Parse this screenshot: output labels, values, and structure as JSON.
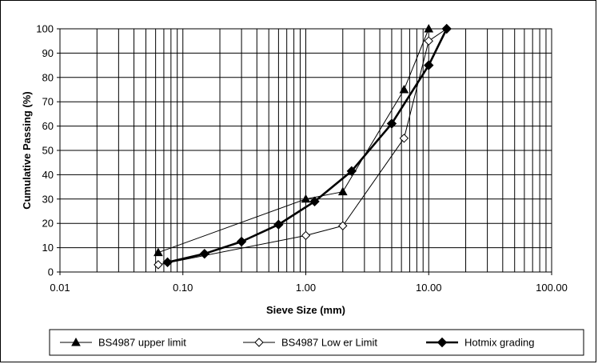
{
  "chart_data": {
    "type": "line",
    "title": "",
    "xlabel": "Sieve Size (mm)",
    "ylabel": "Cumulative Passing (%)",
    "x_scale": "log",
    "xlim": [
      0.01,
      100
    ],
    "ylim": [
      0,
      100
    ],
    "x_tick_labels": [
      "0.01",
      "0.10",
      "1.00",
      "10.00",
      "100.00"
    ],
    "y_tick_labels": [
      "0",
      "10",
      "20",
      "30",
      "40",
      "50",
      "60",
      "70",
      "80",
      "90",
      "100"
    ],
    "grid": true,
    "legend_position": "bottom",
    "series": [
      {
        "name": "BS4987 upper limit",
        "marker": "filled-triangle",
        "color": "#000000",
        "x": [
          0.063,
          1.0,
          2.0,
          6.3,
          10.0
        ],
        "y": [
          8,
          30,
          33,
          75,
          100
        ]
      },
      {
        "name": "BS4987 Low er Limit",
        "marker": "open-diamond",
        "color": "#000000",
        "x": [
          0.063,
          1.0,
          2.0,
          6.3,
          10.0,
          14.0
        ],
        "y": [
          3,
          15,
          19,
          55,
          95,
          100
        ]
      },
      {
        "name": "Hotmix grading",
        "marker": "filled-diamond",
        "color": "#000000",
        "x": [
          0.075,
          0.15,
          0.3,
          0.6,
          1.18,
          2.36,
          5.0,
          10.0,
          14.0
        ],
        "y": [
          4,
          7.5,
          12.5,
          19.5,
          29,
          41.5,
          61,
          85,
          100
        ]
      }
    ]
  }
}
